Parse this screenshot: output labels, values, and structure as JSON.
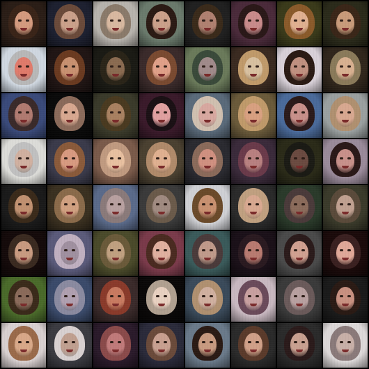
{
  "grid": {
    "rows": 8,
    "cols": 8,
    "tiles": [
      {
        "bg": "#2a1d16",
        "hair": "#3a2418",
        "skin": "#d49a7e"
      },
      {
        "bg": "#1d2030",
        "hair": "#6a4a3a",
        "skin": "#caa08a"
      },
      {
        "bg": "#b7b3ad",
        "hair": "#8a7a6a",
        "skin": "#d8b8a0"
      },
      {
        "bg": "#6a7a6c",
        "hair": "#2a1a14",
        "skin": "#caa08a"
      },
      {
        "bg": "#202020",
        "hair": "#3a2a1a",
        "skin": "#b08070"
      },
      {
        "bg": "#4a2a3a",
        "hair": "#2a1818",
        "skin": "#c88a8a"
      },
      {
        "bg": "#3a3a1a",
        "hair": "#8a5a2a",
        "skin": "#e0b090"
      },
      {
        "bg": "#2a2a1a",
        "hair": "#3a2618",
        "skin": "#c89a7a"
      },
      {
        "bg": "#cfd7e0",
        "hair": "#b8b8b8",
        "skin": "#e07a6a"
      },
      {
        "bg": "#201514",
        "hair": "#6a3a20",
        "skin": "#c89070"
      },
      {
        "bg": "#1a1a14",
        "hair": "#2a2418",
        "skin": "#8a6a50"
      },
      {
        "bg": "#3a2a2a",
        "hair": "#7a4a30",
        "skin": "#e0a088"
      },
      {
        "bg": "#6a7a5a",
        "hair": "#3a4a3a",
        "skin": "#a08a8a"
      },
      {
        "bg": "#3a2a20",
        "hair": "#c09a6a",
        "skin": "#d8c0a0"
      },
      {
        "bg": "#d8d0d8",
        "hair": "#2a1a14",
        "skin": "#c09080"
      },
      {
        "bg": "#30261c",
        "hair": "#8a7a5a",
        "skin": "#d8b090"
      },
      {
        "bg": "#3a4a7a",
        "hair": "#3a2a2a",
        "skin": "#b07a70"
      },
      {
        "bg": "#0a0a0a",
        "hair": "#8a6a5a",
        "skin": "#d8a890"
      },
      {
        "bg": "#3a3a2a",
        "hair": "#4a3a20",
        "skin": "#a88060"
      },
      {
        "bg": "#3a1a2a",
        "hair": "#1a1014",
        "skin": "#e0a0a0"
      },
      {
        "bg": "#5a6a7a",
        "hair": "#d0c0b0",
        "skin": "#d8a8a0"
      },
      {
        "bg": "#6a5a3a",
        "hair": "#c09a6a",
        "skin": "#d8a080"
      },
      {
        "bg": "#4a6a9a",
        "hair": "#2a1a1a",
        "skin": "#c8908a"
      },
      {
        "bg": "#9aa0a0",
        "hair": "#b09070",
        "skin": "#d8a890"
      },
      {
        "bg": "#dcdcd8",
        "hair": "#c0c0c0",
        "skin": "#d0b0a0"
      },
      {
        "bg": "#3a3a4a",
        "hair": "#8a5a3a",
        "skin": "#d89a80"
      },
      {
        "bg": "#7a5a4a",
        "hair": "#c09a80",
        "skin": "#e8c0a0"
      },
      {
        "bg": "#4a4030",
        "hair": "#b08a6a",
        "skin": "#e0b090"
      },
      {
        "bg": "#2a2a30",
        "hair": "#8a6a5a",
        "skin": "#d09080"
      },
      {
        "bg": "#3a2a3a",
        "hair": "#6a3a4a",
        "skin": "#b88080"
      },
      {
        "bg": "#2a2a18",
        "hair": "#1a1a14",
        "skin": "#6a4a40"
      },
      {
        "bg": "#9a8a9a",
        "hair": "#2a1818",
        "skin": "#c8908a"
      },
      {
        "bg": "#1a1a1a",
        "hair": "#3a2a1a",
        "skin": "#c09070"
      },
      {
        "bg": "#3a3020",
        "hair": "#8a6a4a",
        "skin": "#d0a080"
      },
      {
        "bg": "#5a6a8a",
        "hair": "#8a7a7a",
        "skin": "#b8a0a0"
      },
      {
        "bg": "#3a3a3a",
        "hair": "#6a5a4a",
        "skin": "#a08a80"
      },
      {
        "bg": "#cfd0d4",
        "hair": "#6a4a2a",
        "skin": "#c89070"
      },
      {
        "bg": "#2a2a2a",
        "hair": "#c0a080",
        "skin": "#d8a890"
      },
      {
        "bg": "#2a3a2a",
        "hair": "#4a3a3a",
        "skin": "#8a6a5a"
      },
      {
        "bg": "#3a3a2a",
        "hair": "#5a4a3a",
        "skin": "#c0a090"
      },
      {
        "bg": "#140a0a",
        "hair": "#3a2a20",
        "skin": "#c89a80"
      },
      {
        "bg": "#5a5a7a",
        "hair": "#c0b0c0",
        "skin": "#a090a0"
      },
      {
        "bg": "#4a4a2a",
        "hair": "#6a5a3a",
        "skin": "#c0a080"
      },
      {
        "bg": "#7a3a4a",
        "hair": "#4a2a20",
        "skin": "#e0b0a0"
      },
      {
        "bg": "#3a5a5a",
        "hair": "#4a3a3a",
        "skin": "#c09a8a"
      },
      {
        "bg": "#1a1018",
        "hair": "#2a1a20",
        "skin": "#b87a70"
      },
      {
        "bg": "#4a4a4a",
        "hair": "#2a1a1a",
        "skin": "#d0a090"
      },
      {
        "bg": "#1a0a0a",
        "hair": "#3a2020",
        "skin": "#e0a898"
      },
      {
        "bg": "#4a6a2a",
        "hair": "#3a2a1a",
        "skin": "#8a6a5a"
      },
      {
        "bg": "#3a4a6a",
        "hair": "#8a8aa0",
        "skin": "#b0a0b0"
      },
      {
        "bg": "#3a2a2a",
        "hair": "#8a3a2a",
        "skin": "#c87a60"
      },
      {
        "bg": "#0a0808",
        "hair": "#b0a090",
        "skin": "#e8d0c0"
      },
      {
        "bg": "#3a4a5a",
        "hair": "#b09070",
        "skin": "#d0b0a0"
      },
      {
        "bg": "#c8b8c0",
        "hair": "#6a4a5a",
        "skin": "#c8a0a0"
      },
      {
        "bg": "#3a3a3a",
        "hair": "#6a5a5a",
        "skin": "#b8a0a0"
      },
      {
        "bg": "#1a1a1a",
        "hair": "#2a1a14",
        "skin": "#c89080"
      },
      {
        "bg": "#d8d0d0",
        "hair": "#9a6a4a",
        "skin": "#d8a888"
      },
      {
        "bg": "#3a3a40",
        "hair": "#d8d0d0",
        "skin": "#c0a090"
      },
      {
        "bg": "#2a1a2a",
        "hair": "#8a4a4a",
        "skin": "#c07a7a"
      },
      {
        "bg": "#2a2a3a",
        "hair": "#6a4a3a",
        "skin": "#c8a090"
      },
      {
        "bg": "#6a7a8a",
        "hair": "#2a1a14",
        "skin": "#c89a80"
      },
      {
        "bg": "#2a2a2a",
        "hair": "#5a3a2a",
        "skin": "#d0a088"
      },
      {
        "bg": "#2a2a2a",
        "hair": "#2a1a1a",
        "skin": "#c8a090"
      },
      {
        "bg": "#dcd8d8",
        "hair": "#8a7a7a",
        "skin": "#c8b0a8"
      }
    ]
  }
}
